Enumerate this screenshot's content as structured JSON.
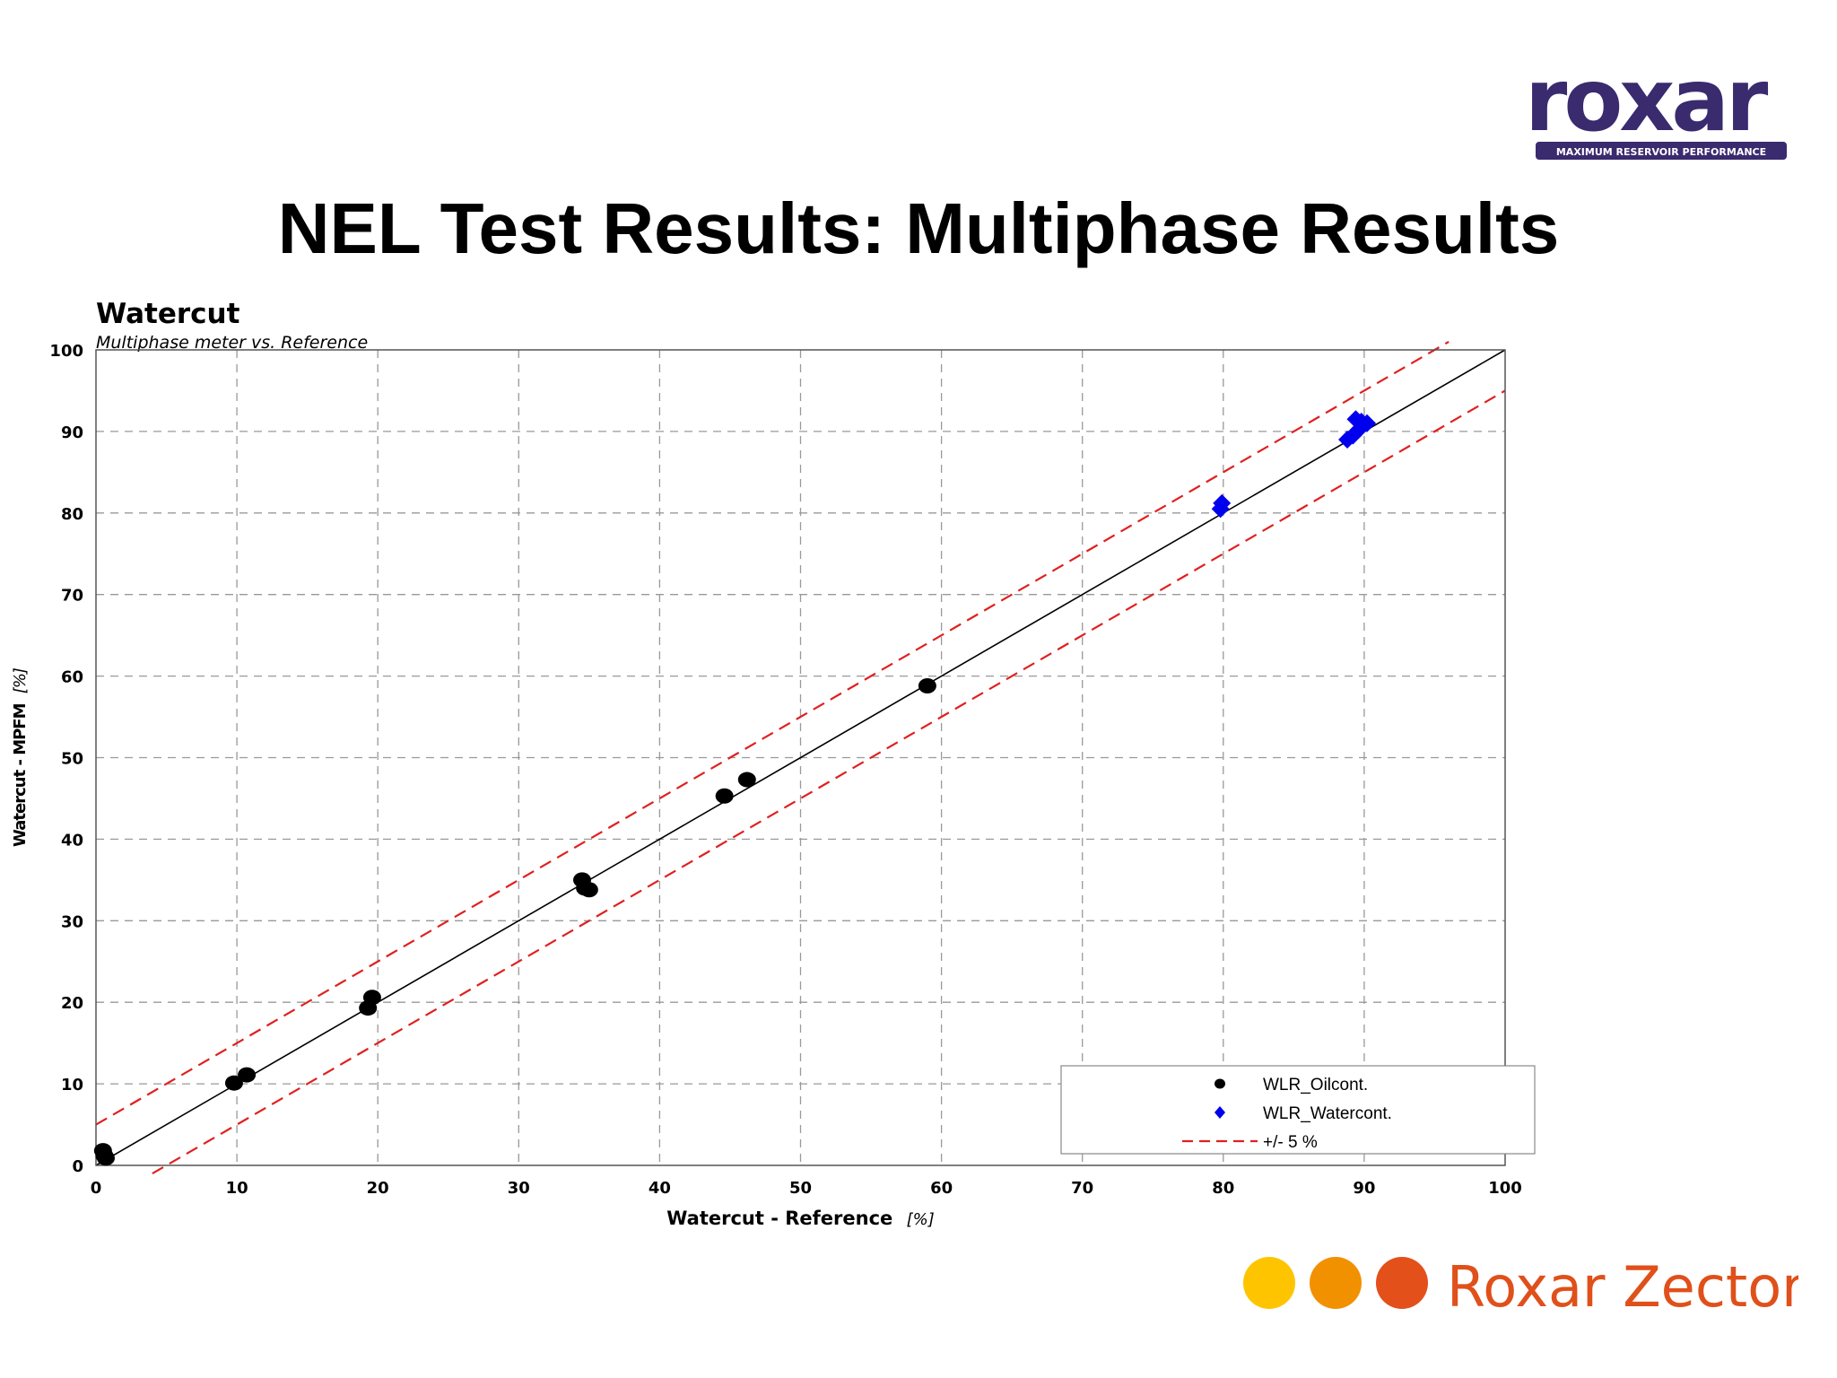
{
  "slide": {
    "title": "NEL Test Results: Multiphase Results"
  },
  "branding": {
    "top_logo_text": "roxar",
    "top_logo_tagline": "MAXIMUM RESERVOIR PERFORMANCE",
    "top_logo_color": "#3a2a6e",
    "bottom_logo_text": "Roxar Zector",
    "bottom_logo_color": "#e0501a",
    "bottom_dot_colors": [
      "#ffc400",
      "#f29100",
      "#e3501a"
    ]
  },
  "chart_data": {
    "type": "scatter",
    "title": "Watercut",
    "subtitle": "Multiphase meter vs. Reference",
    "xlabel": "Watercut - Reference",
    "xlabel_unit": "[%]",
    "ylabel": "Watercut - MPFM",
    "ylabel_unit": "[%]",
    "xlim": [
      0,
      100
    ],
    "ylim": [
      0,
      100
    ],
    "x_ticks": [
      "0",
      "10",
      "20",
      "30",
      "40",
      "50",
      "60",
      "70",
      "80",
      "90",
      "100"
    ],
    "y_ticks": [
      "0",
      "10",
      "20",
      "30",
      "40",
      "50",
      "60",
      "70",
      "80",
      "90",
      "100"
    ],
    "grid": true,
    "legend_position": "bottom-right",
    "series": [
      {
        "name": "WLR_Oilcont.",
        "marker": "circle",
        "color": "#000000",
        "points": [
          [
            0.5,
            1.8
          ],
          [
            0.6,
            1.2
          ],
          [
            0.7,
            0.9
          ],
          [
            9.8,
            10.1
          ],
          [
            10.7,
            11.1
          ],
          [
            19.3,
            19.3
          ],
          [
            19.6,
            20.6
          ],
          [
            34.5,
            35.0
          ],
          [
            34.7,
            34.0
          ],
          [
            35.0,
            33.8
          ],
          [
            44.6,
            45.3
          ],
          [
            46.2,
            47.3
          ],
          [
            59.0,
            58.8
          ]
        ]
      },
      {
        "name": "WLR_Watercont.",
        "marker": "diamond",
        "color": "#0000ee",
        "points": [
          [
            79.8,
            80.5
          ],
          [
            79.9,
            81.2
          ],
          [
            88.8,
            89.0
          ],
          [
            89.2,
            89.5
          ],
          [
            89.6,
            90.2
          ],
          [
            89.4,
            91.5
          ],
          [
            89.8,
            91.2
          ],
          [
            90.2,
            91.0
          ]
        ]
      }
    ],
    "reference_lines": [
      {
        "name": "identity",
        "color": "#000000",
        "dash": "solid",
        "offset": 0
      },
      {
        "name": "+/- 5 %",
        "color": "#e02020",
        "dash": "dashed",
        "offset": 5
      },
      {
        "name": "+/- 5 %",
        "color": "#e02020",
        "dash": "dashed",
        "offset": -5
      }
    ],
    "legend": [
      {
        "label": "WLR_Oilcont.",
        "marker": "circle",
        "color": "#000000"
      },
      {
        "label": "WLR_Watercont.",
        "marker": "diamond",
        "color": "#0000ee"
      },
      {
        "label": "+/- 5 %",
        "marker": "dashed-line",
        "color": "#e02020"
      }
    ]
  }
}
